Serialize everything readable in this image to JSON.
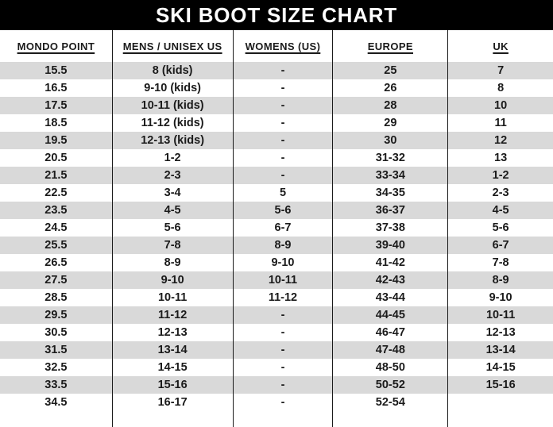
{
  "title": "SKI BOOT SIZE CHART",
  "chart_data": {
    "type": "table",
    "title": "SKI BOOT SIZE CHART",
    "columns": [
      "MONDO POINT",
      "MENS / UNISEX US",
      "WOMENS (US)",
      "EUROPE",
      "UK"
    ],
    "rows": [
      [
        "15.5",
        "8 (kids)",
        "-",
        "25",
        "7"
      ],
      [
        "16.5",
        "9-10 (kids)",
        "-",
        "26",
        "8"
      ],
      [
        "17.5",
        "10-11 (kids)",
        "-",
        "28",
        "10"
      ],
      [
        "18.5",
        "11-12 (kids)",
        "-",
        "29",
        "11"
      ],
      [
        "19.5",
        "12-13 (kids)",
        "-",
        "30",
        "12"
      ],
      [
        "20.5",
        "1-2",
        "-",
        "31-32",
        "13"
      ],
      [
        "21.5",
        "2-3",
        "-",
        "33-34",
        "1-2"
      ],
      [
        "22.5",
        "3-4",
        "5",
        "34-35",
        "2-3"
      ],
      [
        "23.5",
        "4-5",
        "5-6",
        "36-37",
        "4-5"
      ],
      [
        "24.5",
        "5-6",
        "6-7",
        "37-38",
        "5-6"
      ],
      [
        "25.5",
        "7-8",
        "8-9",
        "39-40",
        "6-7"
      ],
      [
        "26.5",
        "8-9",
        "9-10",
        "41-42",
        "7-8"
      ],
      [
        "27.5",
        "9-10",
        "10-11",
        "42-43",
        "8-9"
      ],
      [
        "28.5",
        "10-11",
        "11-12",
        "43-44",
        "9-10"
      ],
      [
        "29.5",
        "11-12",
        "-",
        "44-45",
        "10-11"
      ],
      [
        "30.5",
        "12-13",
        "-",
        "46-47",
        "12-13"
      ],
      [
        "31.5",
        "13-14",
        "-",
        "47-48",
        "13-14"
      ],
      [
        "32.5",
        "14-15",
        "-",
        "48-50",
        "14-15"
      ],
      [
        "33.5",
        "15-16",
        "-",
        "50-52",
        "15-16"
      ],
      [
        "34.5",
        "16-17",
        "-",
        "52-54",
        ""
      ]
    ],
    "layout_hints": {
      "striped_rows": "odd",
      "column_dividers": true,
      "outer_border": false
    }
  },
  "colors": {
    "title_bar_bg": "#000000",
    "title_bar_text": "#ffffff",
    "stripe": "#d9d9d9",
    "text": "#1b1b1b",
    "divider": "#1b1b1b"
  }
}
